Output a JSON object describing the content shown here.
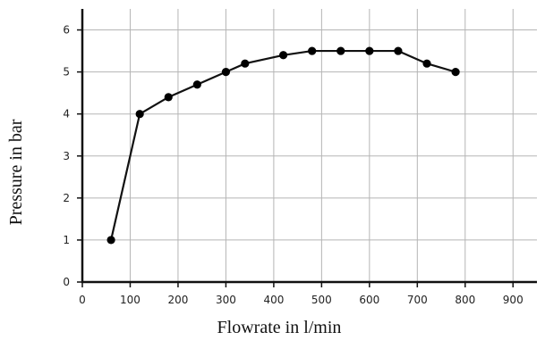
{
  "chart_data": {
    "type": "line",
    "xlabel": "Flowrate in l/min",
    "ylabel": "Pressure in bar",
    "xlim": [
      0,
      950
    ],
    "ylim": [
      0,
      6.5
    ],
    "x_ticks": [
      0,
      100,
      200,
      300,
      400,
      500,
      600,
      700,
      800,
      900
    ],
    "y_ticks": [
      0,
      1,
      2,
      3,
      4,
      5,
      6
    ],
    "grid": true,
    "series": [
      {
        "x": [
          60,
          120,
          180,
          240,
          300,
          340,
          420,
          480,
          540,
          600,
          660,
          720,
          780
        ],
        "values": [
          1.0,
          4.0,
          4.4,
          4.7,
          5.0,
          5.2,
          5.4,
          5.5,
          5.5,
          5.5,
          5.5,
          5.2,
          5.0
        ],
        "color": "#000000"
      }
    ]
  }
}
